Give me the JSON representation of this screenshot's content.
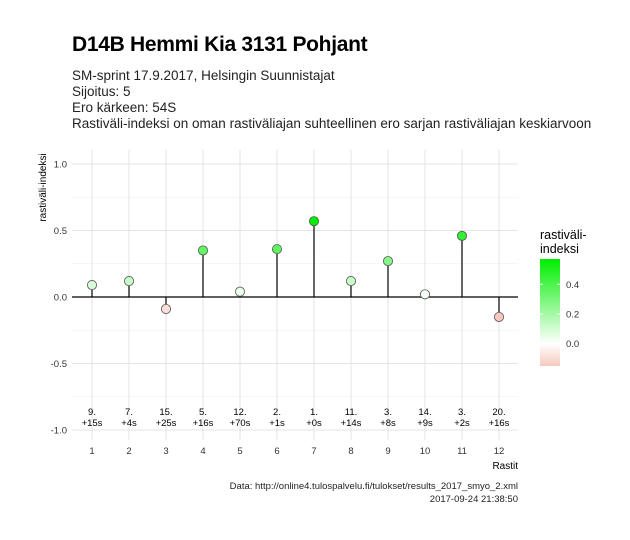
{
  "title": "D14B Hemmi Kia 3131 Pohjant",
  "subtitle_lines": [
    "SM-sprint 17.9.2017, Helsingin Suunnistajat",
    "Sijoitus: 5",
    "Ero kärkeen: 54S",
    "Rastiväli-indeksi on oman rastiväliajan suhteellinen ero sarjan rastiväliajan keskiarvoon"
  ],
  "caption_lines": [
    "Data: http://online4.tulospalvelu.fi/tulokset/results_2017_smyo_2.xml",
    "2017-09-24 21:38:50"
  ],
  "chart_data": {
    "type": "scatter",
    "xlabel": "Rastit",
    "ylabel": "rastiväli-indeksi",
    "ylim": [
      -1.05,
      1.05
    ],
    "yticks": [
      "-1.0",
      "-0.5",
      "0.0",
      "0.5",
      "1.0"
    ],
    "xticks": [
      "1",
      "2",
      "3",
      "4",
      "5",
      "6",
      "7",
      "8",
      "9",
      "10",
      "11",
      "12"
    ],
    "grid": true,
    "points": [
      {
        "x": 1,
        "y": 0.09,
        "rank": "9.",
        "diff": "+15s"
      },
      {
        "x": 2,
        "y": 0.12,
        "rank": "7.",
        "diff": "+4s"
      },
      {
        "x": 3,
        "y": -0.09,
        "rank": "15.",
        "diff": "+25s"
      },
      {
        "x": 4,
        "y": 0.35,
        "rank": "5.",
        "diff": "+16s"
      },
      {
        "x": 5,
        "y": 0.04,
        "rank": "12.",
        "diff": "+70s"
      },
      {
        "x": 6,
        "y": 0.36,
        "rank": "2.",
        "diff": "+1s"
      },
      {
        "x": 7,
        "y": 0.57,
        "rank": "1.",
        "diff": "+0s"
      },
      {
        "x": 8,
        "y": 0.12,
        "rank": "11.",
        "diff": "+14s"
      },
      {
        "x": 9,
        "y": 0.27,
        "rank": "3.",
        "diff": "+8s"
      },
      {
        "x": 10,
        "y": 0.02,
        "rank": "14.",
        "diff": "+9s"
      },
      {
        "x": 11,
        "y": 0.46,
        "rank": "3.",
        "diff": "+2s"
      },
      {
        "x": 12,
        "y": -0.15,
        "rank": "20.",
        "diff": "+16s"
      }
    ],
    "legend": {
      "title_lines": [
        "rastiväli-",
        "indeksi"
      ],
      "ticks": [
        "0.4",
        "0.2",
        "0.0"
      ],
      "tick_values": [
        0.4,
        0.2,
        0.0
      ],
      "range": [
        -0.15,
        0.57
      ],
      "placement": "right",
      "colors": {
        "low": "#f5c9bd",
        "mid": "#ffffff",
        "high": "#00ee00"
      }
    }
  }
}
